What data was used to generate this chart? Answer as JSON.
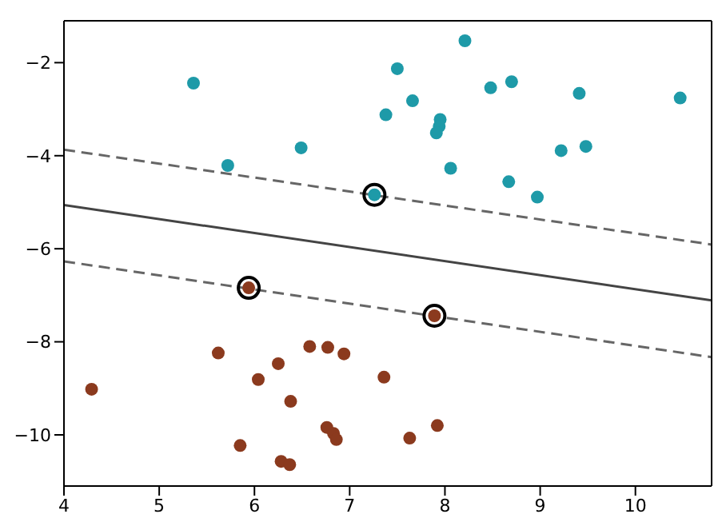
{
  "chart_data": {
    "type": "scatter",
    "xlim": [
      4,
      10.8
    ],
    "ylim": [
      -11.1,
      -1.1
    ],
    "xticks": [
      4,
      5,
      6,
      7,
      8,
      9,
      10
    ],
    "yticks": [
      -2,
      -4,
      -6,
      -8,
      -10
    ],
    "grid": false,
    "series": [
      {
        "marker": "circle",
        "color": "#1e9aa8",
        "x": [
          5.36,
          8.21,
          7.5,
          8.7,
          8.48,
          9.41,
          10.47,
          7.66,
          7.38,
          7.95,
          7.94,
          7.91,
          6.49,
          9.22,
          9.48,
          5.72,
          8.06,
          8.67,
          8.97,
          7.26
        ],
        "values": [
          -2.44,
          -1.53,
          -2.13,
          -2.41,
          -2.54,
          -2.66,
          -2.76,
          -2.82,
          -3.12,
          -3.22,
          -3.37,
          -3.51,
          -3.83,
          -3.89,
          -3.8,
          -4.21,
          -4.27,
          -4.56,
          -4.89,
          -4.84
        ]
      },
      {
        "marker": "circle",
        "color": "#8b3a1e",
        "x": [
          5.94,
          7.89,
          5.62,
          6.58,
          6.77,
          6.94,
          6.25,
          6.04,
          7.36,
          4.29,
          6.38,
          6.76,
          6.83,
          6.86,
          7.92,
          7.63,
          5.85,
          6.28,
          6.37
        ],
        "values": [
          -6.84,
          -7.44,
          -8.24,
          -8.1,
          -8.12,
          -8.26,
          -8.47,
          -8.81,
          -8.76,
          -9.02,
          -9.28,
          -9.84,
          -9.97,
          -10.1,
          -9.8,
          -10.07,
          -10.23,
          -10.57,
          -10.64
        ]
      },
      {
        "marker": "circle",
        "color": "#000000",
        "x": [
          7.26,
          5.94,
          7.89
        ],
        "values": [
          -4.84,
          -6.84,
          -7.44
        ]
      },
      {
        "type": "line",
        "marker": "none",
        "color": "#444444",
        "line_style": "solid",
        "x": [
          4,
          10.8
        ],
        "values": [
          -5.06,
          -7.11
        ]
      },
      {
        "type": "line",
        "marker": "none",
        "color": "#666666",
        "line_style": "dashed",
        "x": [
          4,
          10.8
        ],
        "values": [
          -3.87,
          -5.91
        ]
      },
      {
        "type": "line",
        "marker": "none",
        "color": "#666666",
        "line_style": "dashed",
        "x": [
          4,
          10.8
        ],
        "values": [
          -6.27,
          -8.33
        ]
      }
    ]
  }
}
